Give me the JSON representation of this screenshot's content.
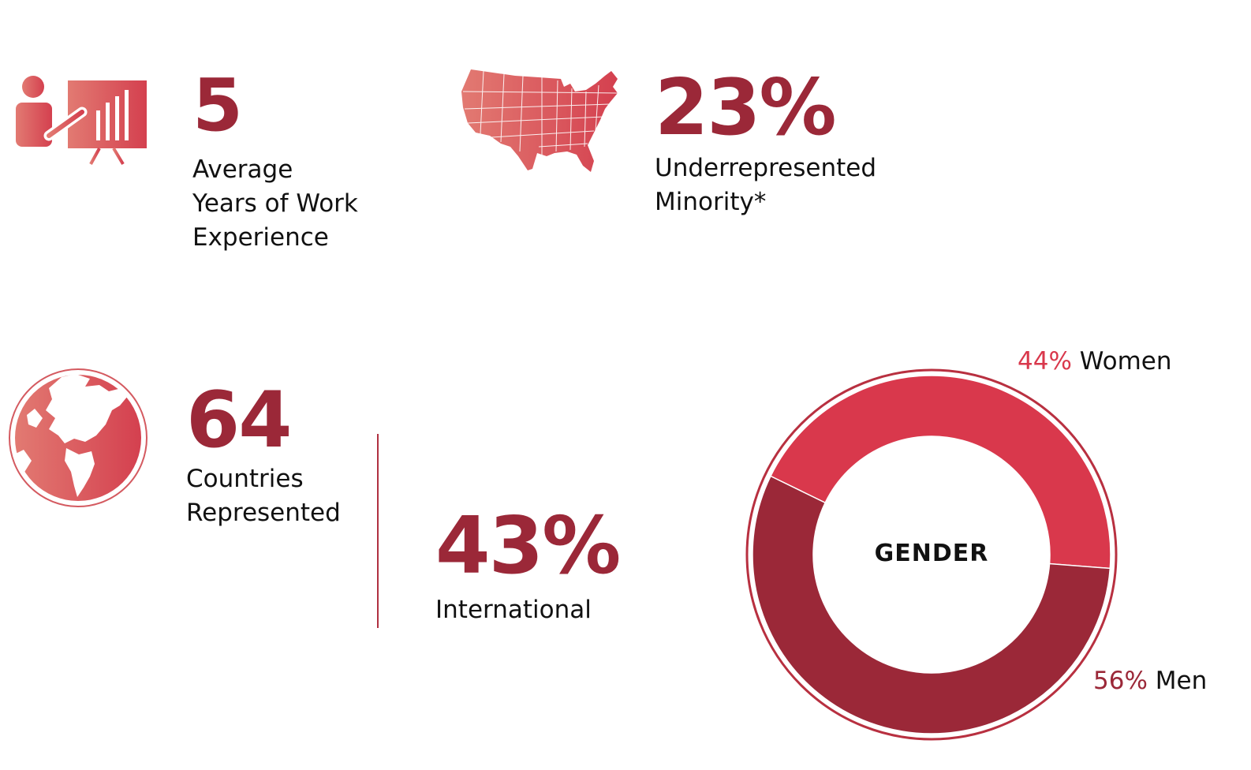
{
  "stats": {
    "work_experience": {
      "value": "5",
      "label_lines": [
        "Average",
        "Years of Work",
        "Experience"
      ],
      "icon": "presentation-icon"
    },
    "urm": {
      "value": "23%",
      "label_lines": [
        "Underrepresented",
        "Minority*"
      ],
      "icon": "usa-map-icon"
    },
    "countries": {
      "value": "64",
      "label_lines": [
        "Countries",
        "Represented"
      ],
      "icon": "globe-icon"
    },
    "international": {
      "value": "43%",
      "label_lines": [
        "International"
      ]
    }
  },
  "gender": {
    "center_label": "GENDER",
    "women": {
      "pct": "44%",
      "label": "Women",
      "value": 44,
      "color": "#d9384c"
    },
    "men": {
      "pct": "56%",
      "label": "Men",
      "value": 56,
      "color": "#9b2838"
    }
  },
  "colors": {
    "accent": "#9b2838",
    "accent_light": "#d9384c",
    "icon_gradient_start": "#e27a72",
    "icon_gradient_end": "#d4404f"
  }
}
